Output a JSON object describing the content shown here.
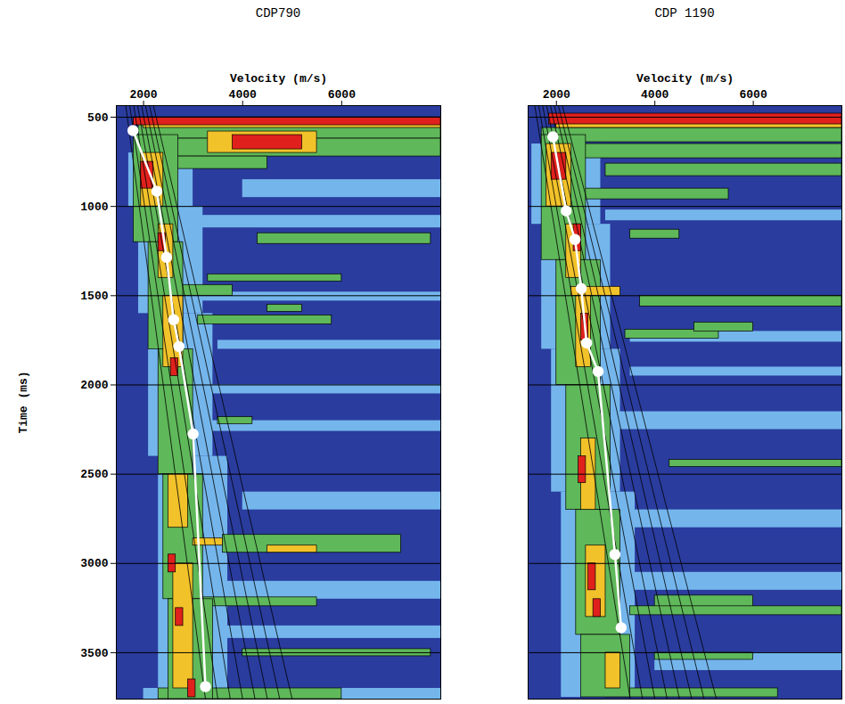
{
  "chart_data": [
    {
      "type": "heatmap",
      "title": "CDP790",
      "x_label": "Velocity (m/s)",
      "y_label": "Time (ms)",
      "xlim": [
        1450,
        8000
      ],
      "xticks": [
        2000,
        4000,
        6000
      ],
      "ylim": [
        435,
        3760
      ],
      "yticks": [
        500,
        1000,
        1500,
        2000,
        2500,
        3000,
        3500
      ],
      "grid": true,
      "tick_labels": true,
      "colors": [
        "#2a3c9e",
        "#74b6ec",
        "#5fb85a",
        "#f2c22a",
        "#e0201c"
      ],
      "cells": [
        [
          1700,
          3000,
          700,
          1000,
          1
        ],
        [
          1900,
          3200,
          1000,
          1600,
          1
        ],
        [
          2100,
          3400,
          1600,
          2400,
          1
        ],
        [
          2300,
          3700,
          2400,
          3760,
          1
        ],
        [
          3000,
          8000,
          1050,
          1120,
          1
        ],
        [
          3500,
          8000,
          1750,
          1800,
          1
        ],
        [
          3000,
          8000,
          2200,
          2260,
          1
        ],
        [
          4000,
          8000,
          2600,
          2700,
          1
        ],
        [
          3500,
          8000,
          3100,
          3200,
          1
        ],
        [
          3000,
          8000,
          3350,
          3420,
          1
        ],
        [
          2000,
          8000,
          3700,
          3760,
          1
        ],
        [
          4000,
          8000,
          850,
          950,
          1
        ],
        [
          3000,
          8000,
          1480,
          1530,
          1
        ],
        [
          3000,
          8000,
          2000,
          2050,
          1
        ],
        [
          1900,
          8000,
          540,
          620,
          2
        ],
        [
          2500,
          8000,
          620,
          720,
          2
        ],
        [
          2600,
          4500,
          720,
          790,
          2
        ],
        [
          4300,
          7800,
          1150,
          1210,
          2
        ],
        [
          3300,
          6000,
          1380,
          1420,
          2
        ],
        [
          2600,
          3800,
          1440,
          1500,
          2
        ],
        [
          3100,
          5800,
          1610,
          1660,
          2
        ],
        [
          4500,
          5200,
          1550,
          1590,
          2
        ],
        [
          3500,
          4200,
          2180,
          2220,
          2
        ],
        [
          3600,
          7200,
          2840,
          2940,
          2
        ],
        [
          3200,
          5500,
          3190,
          3240,
          2
        ],
        [
          4000,
          7800,
          3480,
          3520,
          2
        ],
        [
          2300,
          6000,
          3700,
          3760,
          2
        ],
        [
          1800,
          2700,
          600,
          1200,
          2
        ],
        [
          2100,
          2800,
          1200,
          1800,
          2
        ],
        [
          2300,
          3000,
          1800,
          2500,
          2
        ],
        [
          2400,
          3200,
          2500,
          3200,
          2
        ],
        [
          2500,
          3400,
          3200,
          3760,
          2
        ],
        [
          3300,
          5500,
          580,
          700,
          3
        ],
        [
          2000,
          8000,
          520,
          560,
          3
        ],
        [
          3000,
          3600,
          2860,
          2900,
          3
        ],
        [
          4500,
          5500,
          2900,
          2940,
          3
        ],
        [
          1950,
          2400,
          700,
          1000,
          3
        ],
        [
          2300,
          2600,
          1100,
          1400,
          3
        ],
        [
          2400,
          2800,
          1500,
          1900,
          3
        ],
        [
          2500,
          2900,
          2500,
          2800,
          3
        ],
        [
          2600,
          3000,
          3000,
          3700,
          3
        ],
        [
          1800,
          8000,
          500,
          545,
          4
        ],
        [
          3800,
          5200,
          600,
          680,
          4
        ],
        [
          1950,
          2200,
          750,
          900,
          4
        ],
        [
          2300,
          2450,
          1150,
          1250,
          4
        ],
        [
          2550,
          2700,
          1850,
          1950,
          4
        ],
        [
          2500,
          2650,
          2950,
          3050,
          4
        ],
        [
          2650,
          2800,
          3250,
          3350,
          4
        ],
        [
          2900,
          3050,
          3650,
          3750,
          4
        ]
      ],
      "guide_lines": {
        "time": [
          435,
          3760
        ],
        "v_start": [
          1640,
          1720,
          1800,
          1880,
          1960,
          2040,
          2120,
          2200
        ],
        "v_end": [
          3250,
          3500,
          3750,
          4000,
          4250,
          4500,
          4750,
          5000
        ]
      },
      "picks": {
        "color": "#ffffff",
        "marker": "circle",
        "velocity": [
          1786,
          2268,
          2464,
          2607,
          2714,
          3000,
          3250
        ],
        "time": [
          575,
          915,
          1285,
          1635,
          1785,
          2275,
          3690
        ]
      }
    },
    {
      "type": "heatmap",
      "title": "CDP 1190",
      "x_label": "Velocity (m/s)",
      "xlim": [
        1425,
        7800
      ],
      "xticks": [
        2000,
        4000,
        6000
      ],
      "ylim": [
        435,
        3760
      ],
      "yticks": [
        500,
        1000,
        1500,
        2000,
        2500,
        3000,
        3500
      ],
      "grid": true,
      "tick_labels": "x",
      "colors": [
        "#2a3c9e",
        "#74b6ec",
        "#5fb85a",
        "#f2c22a",
        "#e0201c"
      ],
      "cells": [
        [
          1500,
          2900,
          650,
          1100,
          1
        ],
        [
          1700,
          3100,
          1100,
          1800,
          1
        ],
        [
          1900,
          3300,
          1800,
          2600,
          1
        ],
        [
          2100,
          3600,
          2600,
          3750,
          1
        ],
        [
          3000,
          7800,
          1020,
          1080,
          1
        ],
        [
          3500,
          7800,
          1700,
          1760,
          1
        ],
        [
          3000,
          7800,
          2150,
          2250,
          1
        ],
        [
          3500,
          7800,
          2700,
          2800,
          1
        ],
        [
          3000,
          7800,
          3050,
          3150,
          1
        ],
        [
          4000,
          7800,
          3500,
          3600,
          1
        ],
        [
          3500,
          7800,
          1900,
          1950,
          1
        ],
        [
          1700,
          7800,
          560,
          640,
          2
        ],
        [
          2200,
          7800,
          650,
          730,
          2
        ],
        [
          3000,
          7800,
          760,
          830,
          2
        ],
        [
          2500,
          5500,
          900,
          960,
          2
        ],
        [
          3500,
          4500,
          1130,
          1180,
          2
        ],
        [
          3700,
          7800,
          1500,
          1560,
          2
        ],
        [
          3400,
          5300,
          1690,
          1740,
          2
        ],
        [
          4800,
          6000,
          1650,
          1700,
          2
        ],
        [
          4300,
          7800,
          2420,
          2460,
          2
        ],
        [
          4000,
          6000,
          3180,
          3260,
          2
        ],
        [
          3500,
          7800,
          3240,
          3290,
          2
        ],
        [
          4000,
          6000,
          3500,
          3540,
          2
        ],
        [
          3000,
          6500,
          3700,
          3750,
          2
        ],
        [
          1700,
          2600,
          600,
          1300,
          2
        ],
        [
          2000,
          2900,
          1300,
          2000,
          2
        ],
        [
          2200,
          3100,
          2000,
          2700,
          2
        ],
        [
          2400,
          3300,
          2700,
          3400,
          2
        ],
        [
          2500,
          3500,
          3400,
          3750,
          2
        ],
        [
          2000,
          7800,
          520,
          560,
          3
        ],
        [
          2300,
          3300,
          1450,
          1500,
          3
        ],
        [
          1800,
          2300,
          650,
          1000,
          3
        ],
        [
          2200,
          2500,
          1100,
          1400,
          3
        ],
        [
          2400,
          2700,
          1500,
          1900,
          3
        ],
        [
          2500,
          2800,
          2300,
          2700,
          3
        ],
        [
          2600,
          3000,
          2900,
          3300,
          3
        ],
        [
          3000,
          3300,
          3500,
          3700,
          3
        ],
        [
          1850,
          7800,
          480,
          540,
          4
        ],
        [
          1900,
          2200,
          700,
          850,
          4
        ],
        [
          2350,
          2500,
          1100,
          1250,
          4
        ],
        [
          2500,
          2650,
          1600,
          1750,
          4
        ],
        [
          2450,
          2600,
          2400,
          2550,
          4
        ],
        [
          2650,
          2800,
          3000,
          3150,
          4
        ],
        [
          2750,
          2900,
          3200,
          3300,
          4
        ]
      ],
      "guide_lines": {
        "time": [
          435,
          3760
        ],
        "v_start": [
          1560,
          1640,
          1720,
          1800,
          1880,
          1960,
          2040,
          2120
        ],
        "v_end": [
          3500,
          3750,
          4000,
          4250,
          4500,
          4750,
          5000,
          5250
        ]
      },
      "picks": {
        "color": "#ffffff",
        "marker": "circle",
        "velocity": [
          1928,
          2198,
          2378,
          2505,
          2613,
          2847,
          3189,
          3315
        ],
        "time": [
          610,
          1025,
          1185,
          1460,
          1765,
          1925,
          2950,
          3360
        ]
      }
    }
  ]
}
